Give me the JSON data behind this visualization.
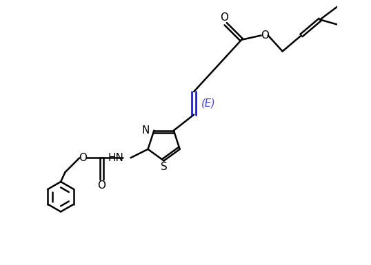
{
  "bg_color": "#ffffff",
  "bond_color": "#000000",
  "blue_color": "#0000ff",
  "blue_italic_color": "#4040ff",
  "figsize": [
    5.38,
    3.85
  ],
  "dpi": 100,
  "lw": 1.8,
  "fs": 11,
  "xlim": [
    0,
    10.5
  ],
  "ylim": [
    -0.5,
    8.5
  ]
}
